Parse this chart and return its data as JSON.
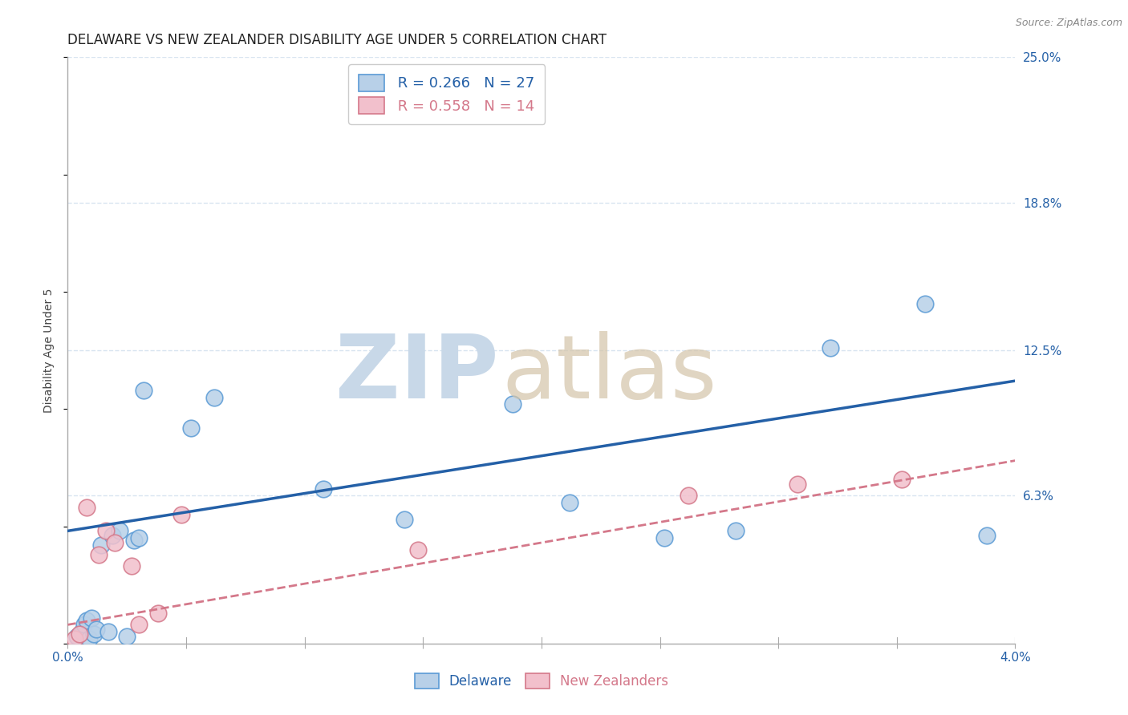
{
  "title": "DELAWARE VS NEW ZEALANDER DISABILITY AGE UNDER 5 CORRELATION CHART",
  "source": "Source: ZipAtlas.com",
  "ylabel": "Disability Age Under 5",
  "x_min": 0.0,
  "x_max": 4.0,
  "y_min": 0.0,
  "y_max": 25.0,
  "x_ticks": [
    0.0,
    0.5,
    1.0,
    1.5,
    2.0,
    2.5,
    3.0,
    3.5,
    4.0
  ],
  "y_ticks_right": [
    6.3,
    12.5,
    18.8,
    25.0
  ],
  "y_tick_labels_right": [
    "6.3%",
    "12.5%",
    "18.8%",
    "25.0%"
  ],
  "delaware_color": "#b8d0e8",
  "delaware_edge_color": "#5b9bd5",
  "nz_color": "#f2c0cc",
  "nz_edge_color": "#d4788a",
  "blue_line_color": "#2460a7",
  "pink_line_color": "#d4788a",
  "legend_R1": "R = 0.266",
  "legend_N1": "N = 27",
  "legend_R2": "R = 0.558",
  "legend_N2": "N = 14",
  "delaware_x": [
    0.04,
    0.06,
    0.07,
    0.08,
    0.09,
    0.1,
    0.11,
    0.12,
    0.14,
    0.17,
    0.19,
    0.22,
    0.25,
    0.28,
    0.3,
    0.32,
    0.52,
    0.62,
    1.08,
    1.42,
    1.88,
    2.12,
    2.52,
    2.82,
    3.22,
    3.62,
    3.88
  ],
  "delaware_y": [
    0.3,
    0.5,
    0.8,
    1.0,
    0.2,
    1.1,
    0.4,
    0.6,
    4.2,
    0.5,
    4.6,
    4.8,
    0.3,
    4.4,
    4.5,
    10.8,
    9.2,
    10.5,
    6.6,
    5.3,
    10.2,
    6.0,
    4.5,
    4.8,
    12.6,
    14.5,
    4.6
  ],
  "nz_x": [
    0.03,
    0.05,
    0.08,
    0.13,
    0.16,
    0.2,
    0.27,
    0.3,
    0.38,
    0.48,
    1.48,
    2.62,
    3.08,
    3.52
  ],
  "nz_y": [
    0.2,
    0.4,
    5.8,
    3.8,
    4.8,
    4.3,
    3.3,
    0.8,
    1.3,
    5.5,
    4.0,
    6.3,
    6.8,
    7.0
  ],
  "blue_line_x0": 0.0,
  "blue_line_x1": 4.0,
  "blue_line_y0": 4.8,
  "blue_line_y1": 11.2,
  "pink_line_x0": 0.0,
  "pink_line_x1": 4.0,
  "pink_line_y0": 0.8,
  "pink_line_y1": 7.8,
  "grid_color": "#d8e4f0",
  "background_color": "#ffffff",
  "title_fontsize": 12,
  "axis_label_fontsize": 10,
  "tick_fontsize": 11,
  "legend_fontsize": 13,
  "scatter_size": 220
}
